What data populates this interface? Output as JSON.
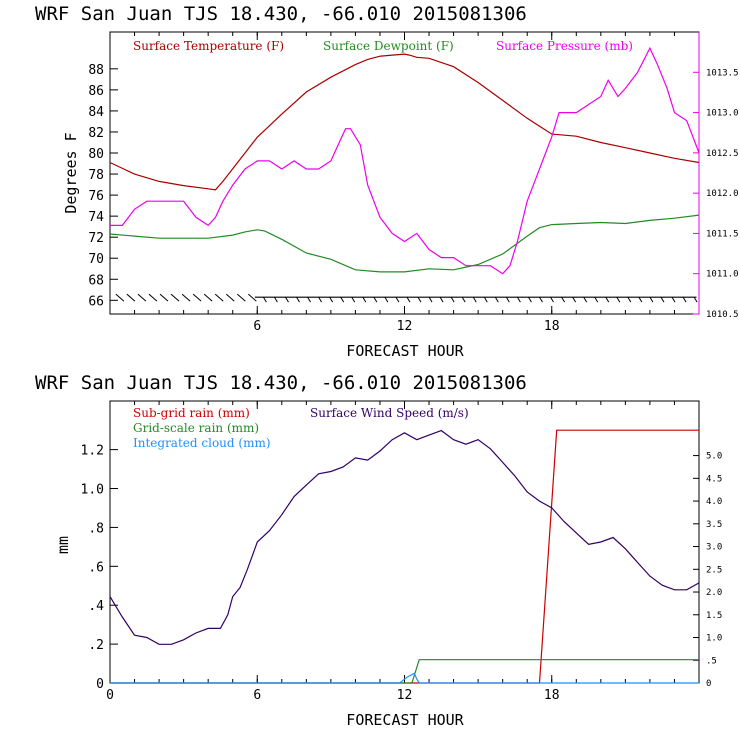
{
  "figure": {
    "top_title": "WRF  San Juan TJS  18.430, -66.010  2015081306",
    "bottom_title": "WRF  San Juan TJS  18.430, -66.010  2015081306"
  },
  "colors": {
    "temperature": "#aa0000",
    "dewpoint": "#228b22",
    "pressure": "#ee00ee",
    "wind_barbs": "#000000",
    "subgrid_rain": "#cc0000",
    "gridscale_rain": "#228b22",
    "integrated_cloud": "#1e90ff",
    "wind_speed": "#330066"
  },
  "chart_data": [
    {
      "type": "line",
      "xlabel": "FORECAST HOUR",
      "ylabel": "Degrees F",
      "xlim": [
        0,
        24
      ],
      "ylim": [
        64.7,
        91.5
      ],
      "y2lim": [
        1010.5,
        1014.0
      ],
      "x_ticks": [
        6,
        12,
        18
      ],
      "y_ticks": [
        66,
        68,
        70,
        72,
        74,
        76,
        78,
        80,
        82,
        84,
        86,
        88
      ],
      "y2_ticks": [
        "1010.5",
        "1011.0",
        "1011.5",
        "1012.0",
        "1012.5",
        "1013.0",
        "1013.5"
      ],
      "legend": [
        "Surface Temperature (F)",
        "Surface Dewpoint (F)",
        "Surface Pressure (mb)"
      ],
      "series": [
        {
          "name": "Surface Temperature (F)",
          "axis": "left",
          "x": [
            0,
            1,
            2,
            3,
            4,
            4.3,
            4.6,
            5,
            5.5,
            6,
            7,
            8,
            9,
            10,
            10.5,
            11,
            11.5,
            12,
            12.2,
            12.5,
            13,
            14,
            15,
            16,
            17,
            18,
            19,
            20,
            21,
            22,
            23,
            24
          ],
          "y": [
            79.1,
            78.0,
            77.3,
            76.9,
            76.6,
            76.5,
            77.3,
            78.5,
            80.0,
            81.5,
            83.7,
            85.8,
            87.2,
            88.4,
            88.9,
            89.2,
            89.3,
            89.4,
            89.3,
            89.1,
            89.0,
            88.2,
            86.7,
            85.0,
            83.3,
            81.8,
            81.6,
            81.0,
            80.5,
            80.0,
            79.5,
            79.1
          ]
        },
        {
          "name": "Surface Dewpoint (F)",
          "axis": "left",
          "x": [
            0,
            1,
            2,
            3,
            4,
            5,
            5.5,
            6,
            6.3,
            7,
            8,
            9,
            10,
            11,
            12,
            13,
            14,
            15,
            16,
            17,
            17.5,
            18,
            19,
            20,
            21,
            22,
            23,
            24
          ],
          "y": [
            72.3,
            72.1,
            71.9,
            71.9,
            71.9,
            72.2,
            72.5,
            72.7,
            72.6,
            71.8,
            70.5,
            69.9,
            68.9,
            68.7,
            68.7,
            69.0,
            68.9,
            69.4,
            70.4,
            72.1,
            72.9,
            73.2,
            73.3,
            73.4,
            73.3,
            73.6,
            73.8,
            74.1
          ]
        },
        {
          "name": "Surface Pressure (mb)",
          "axis": "right",
          "x": [
            0,
            0.5,
            1,
            1.5,
            2,
            2.5,
            3,
            3.5,
            4,
            4.3,
            4.6,
            5,
            5.5,
            6,
            6.5,
            7,
            7.5,
            8,
            8.5,
            9,
            9.3,
            9.6,
            9.8,
            10.2,
            10.5,
            11,
            11.5,
            12,
            12.5,
            13,
            13.5,
            14,
            14.5,
            15,
            15.5,
            16,
            16.3,
            16.6,
            17,
            17.5,
            18,
            18.3,
            18.6,
            19,
            19.5,
            20,
            20.3,
            20.7,
            21,
            21.5,
            22,
            22.3,
            22.7,
            23,
            23.5,
            24
          ],
          "y": [
            1011.6,
            1011.6,
            1011.8,
            1011.9,
            1011.9,
            1011.9,
            1011.9,
            1011.7,
            1011.6,
            1011.7,
            1011.9,
            1012.1,
            1012.3,
            1012.4,
            1012.4,
            1012.3,
            1012.4,
            1012.3,
            1012.3,
            1012.4,
            1012.6,
            1012.8,
            1012.8,
            1012.6,
            1012.1,
            1011.7,
            1011.5,
            1011.4,
            1011.5,
            1011.3,
            1011.2,
            1011.2,
            1011.1,
            1011.1,
            1011.1,
            1011.0,
            1011.1,
            1011.4,
            1011.9,
            1012.3,
            1012.7,
            1013.0,
            1013.0,
            1013.0,
            1013.1,
            1013.2,
            1013.4,
            1013.2,
            1013.3,
            1013.5,
            1013.8,
            1013.6,
            1013.3,
            1013.0,
            1012.9,
            1012.5
          ]
        }
      ],
      "wind_barbs": {
        "y_level": 66.3,
        "note_barbs": "barbs drawn along bottom of panel"
      }
    },
    {
      "type": "line",
      "xlabel": "FORECAST HOUR",
      "ylabel": "mm",
      "xlim": [
        0,
        24
      ],
      "ylim": [
        0,
        1.45
      ],
      "y2lim": [
        0,
        6.2
      ],
      "x_ticks": [
        "0",
        "6",
        "12",
        "18"
      ],
      "y_ticks": [
        "0",
        ".2",
        ".4",
        ".6",
        ".8",
        "1.0",
        "1.2"
      ],
      "y2_ticks": [
        "0",
        ".5",
        "1.0",
        "1.5",
        "2.0",
        "2.5",
        "3.0",
        "3.5",
        "4.0",
        "4.5",
        "5.0"
      ],
      "legend": [
        "Sub-grid rain (mm)",
        "Grid-scale rain (mm)",
        "Integrated cloud (mm)",
        "Surface Wind Speed (m/s)"
      ],
      "series": [
        {
          "name": "Sub-grid rain (mm)",
          "axis": "left",
          "x": [
            0,
            17.5,
            18.2,
            24
          ],
          "y": [
            0,
            0,
            1.3,
            1.3
          ]
        },
        {
          "name": "Grid-scale rain (mm)",
          "axis": "left",
          "x": [
            0,
            12.3,
            12.6,
            24
          ],
          "y": [
            0,
            0,
            0.12,
            0.12
          ]
        },
        {
          "name": "Integrated cloud (mm)",
          "axis": "left",
          "x": [
            0,
            11.8,
            12.1,
            12.4,
            12.5,
            12.6,
            24
          ],
          "y": [
            0,
            0,
            0.03,
            0.05,
            0.02,
            0,
            0
          ]
        },
        {
          "name": "Surface Wind Speed (m/s)",
          "axis": "right",
          "x": [
            0,
            0.5,
            1,
            1.5,
            2,
            2.5,
            3,
            3.5,
            4,
            4.5,
            4.8,
            5,
            5.3,
            5.6,
            6,
            6.5,
            7,
            7.5,
            8,
            8.5,
            9,
            9.5,
            10,
            10.5,
            11,
            11.5,
            12,
            12.5,
            13,
            13.5,
            14,
            14.5,
            15,
            15.5,
            16,
            16.5,
            17,
            17.5,
            18,
            18.5,
            19,
            19.5,
            20,
            20.5,
            21,
            21.5,
            22,
            22.5,
            23,
            23.5,
            24
          ],
          "y": [
            1.9,
            1.45,
            1.05,
            1.0,
            0.85,
            0.85,
            0.95,
            1.1,
            1.2,
            1.2,
            1.5,
            1.9,
            2.1,
            2.5,
            3.1,
            3.35,
            3.7,
            4.1,
            4.35,
            4.6,
            4.65,
            4.75,
            4.95,
            4.9,
            5.1,
            5.35,
            5.5,
            5.35,
            5.45,
            5.55,
            5.35,
            5.25,
            5.35,
            5.15,
            4.85,
            4.55,
            4.2,
            4.0,
            3.85,
            3.55,
            3.3,
            3.05,
            3.1,
            3.2,
            2.95,
            2.65,
            2.35,
            2.15,
            2.05,
            2.05,
            2.2
          ]
        }
      ]
    }
  ]
}
